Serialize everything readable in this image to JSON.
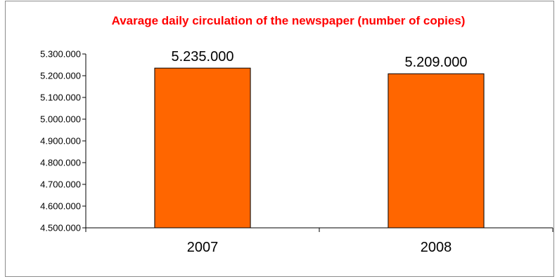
{
  "chart_data": {
    "type": "bar",
    "title": "Avarage daily circulation of the newspaper (number of copies)",
    "categories": [
      "2007",
      "2008"
    ],
    "values": [
      5235000,
      5209000
    ],
    "data_labels": [
      "5.235.000",
      "5.209.000"
    ],
    "ylim": [
      4500000,
      5300000
    ],
    "yticks": [
      4500000,
      4600000,
      4700000,
      4800000,
      4900000,
      5000000,
      5100000,
      5200000,
      5300000
    ],
    "ytick_labels": [
      "4.500.000",
      "4.600.000",
      "4.700.000",
      "4.800.000",
      "4.900.000",
      "5.000.000",
      "5.100.000",
      "5.200.000",
      "5.300.000"
    ],
    "bar_color": "#ff6600",
    "grid": false,
    "legend": false
  }
}
